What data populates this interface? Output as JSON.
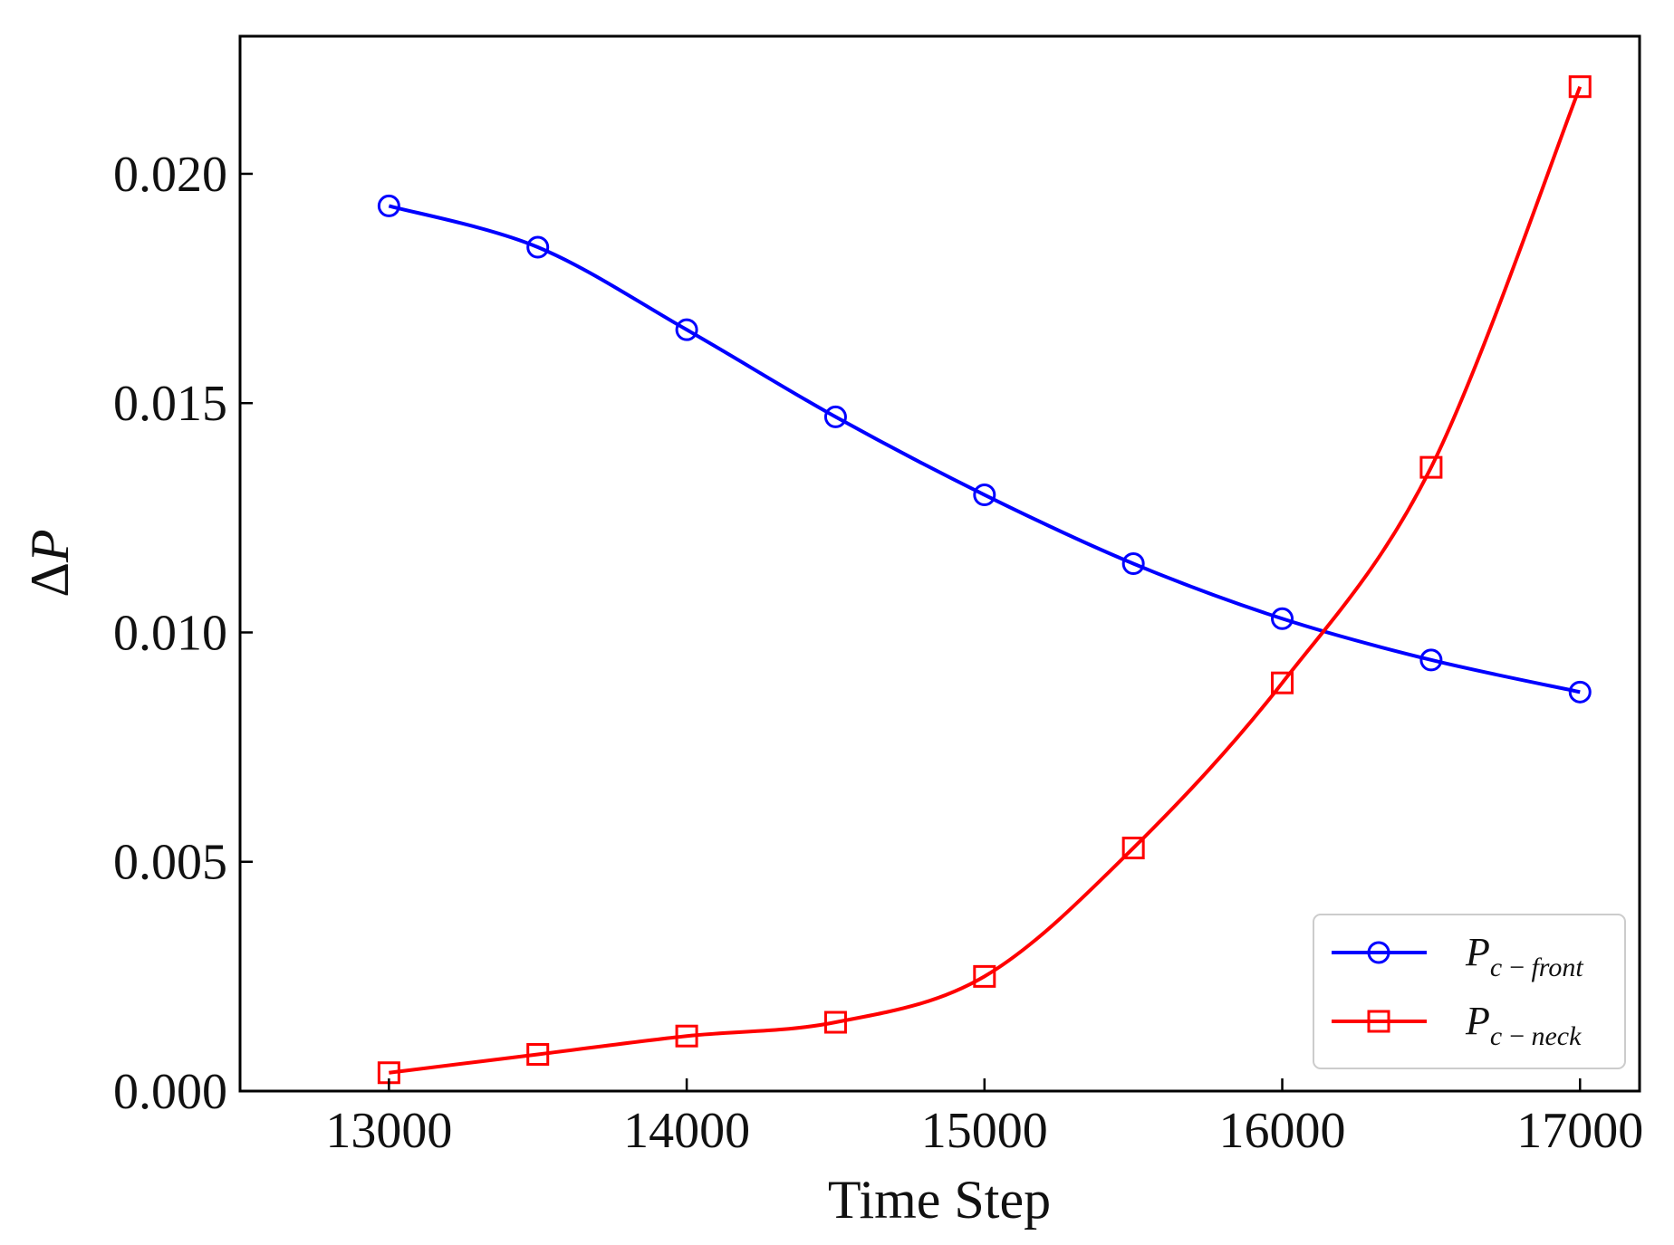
{
  "chart_data": {
    "type": "line",
    "title": "",
    "xlabel": "Time Step",
    "ylabel": "ΔP",
    "ylabel_parts": {
      "symbol": "Δ",
      "letter": "P"
    },
    "xlim": [
      12500,
      17200
    ],
    "ylim": [
      0.0,
      0.023
    ],
    "x_ticks": [
      13000,
      14000,
      15000,
      16000,
      17000
    ],
    "x_tick_labels": [
      "13000",
      "14000",
      "15000",
      "16000",
      "17000"
    ],
    "y_ticks": [
      0.0,
      0.005,
      0.01,
      0.015,
      0.02
    ],
    "y_tick_labels": [
      "0.000",
      "0.005",
      "0.010",
      "0.015",
      "0.020"
    ],
    "grid": false,
    "legend_position": "lower-right",
    "x": [
      13000,
      13500,
      14000,
      14500,
      15000,
      15500,
      16000,
      16500,
      17000
    ],
    "series": [
      {
        "name": "P_{c-front}",
        "legend_main": "P",
        "legend_sub": "c − front",
        "color": "#0000ff",
        "marker": "circle",
        "values": [
          0.0193,
          0.0184,
          0.0166,
          0.0147,
          0.013,
          0.0115,
          0.0103,
          0.0094,
          0.0087
        ]
      },
      {
        "name": "P_{c-neck}",
        "legend_main": "P",
        "legend_sub": "c − neck",
        "color": "#ff0000",
        "marker": "square",
        "values": [
          0.0004,
          0.0008,
          0.0012,
          0.0015,
          0.0025,
          0.0053,
          0.0089,
          0.0136,
          0.0219
        ]
      }
    ]
  }
}
